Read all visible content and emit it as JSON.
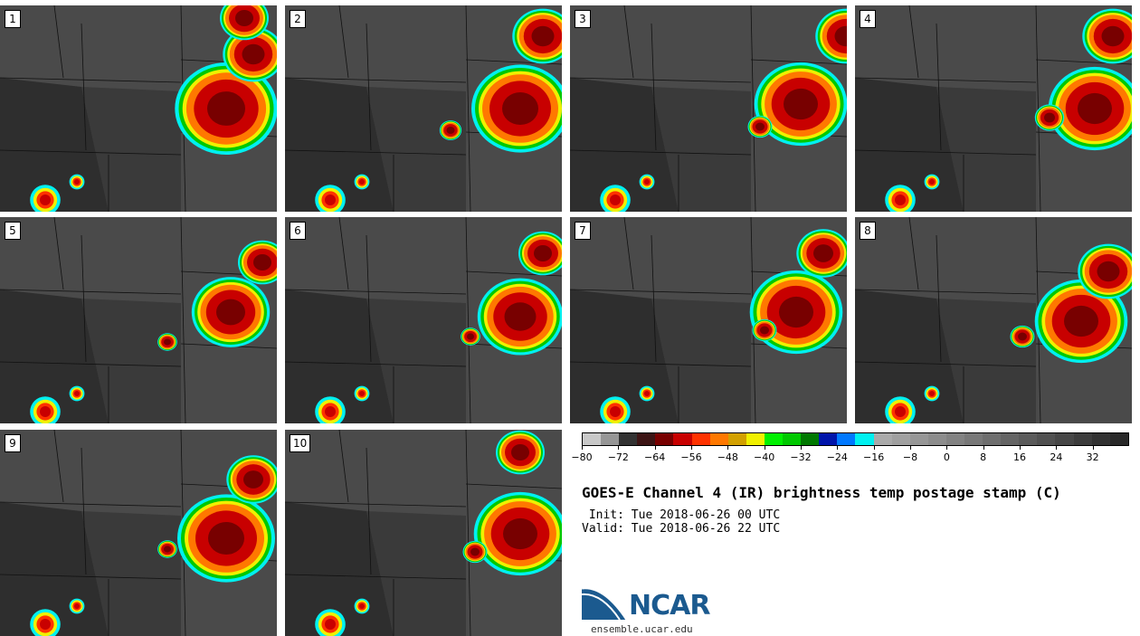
{
  "panels": [
    {
      "label": "1"
    },
    {
      "label": "2"
    },
    {
      "label": "3"
    },
    {
      "label": "4"
    },
    {
      "label": "5"
    },
    {
      "label": "6"
    },
    {
      "label": "7"
    },
    {
      "label": "8"
    },
    {
      "label": "9"
    },
    {
      "label": "10"
    }
  ],
  "colorbar": {
    "colors": [
      "#c8c8c8",
      "#969696",
      "#323232",
      "#3c1414",
      "#780000",
      "#c80000",
      "#ff3200",
      "#ff7800",
      "#d2a000",
      "#f0f000",
      "#00f000",
      "#00c800",
      "#007800",
      "#0014aa",
      "#0078ff",
      "#00f0f0",
      "#aaaaaa",
      "#a0a0a0",
      "#969696",
      "#8c8c8c",
      "#828282",
      "#787878",
      "#6e6e6e",
      "#646464",
      "#5a5a5a",
      "#505050",
      "#464646",
      "#3c3c3c",
      "#323232",
      "#282828"
    ],
    "tick_labels": [
      "-80",
      "-72",
      "-64",
      "-56",
      "-48",
      "-40",
      "-32",
      "-24",
      "-16",
      "-8",
      "0",
      "8",
      "16",
      "24",
      "32"
    ]
  },
  "title": "GOES-E Channel 4 (IR) brightness temp postage stamp (C)",
  "init_line": " Init: Tue 2018-06-26 00 UTC",
  "valid_line": "Valid: Tue 2018-06-26 22 UTC",
  "logo": {
    "text": "NCAR",
    "color": "#1b5a8f"
  },
  "website": "ensemble.ucar.edu"
}
